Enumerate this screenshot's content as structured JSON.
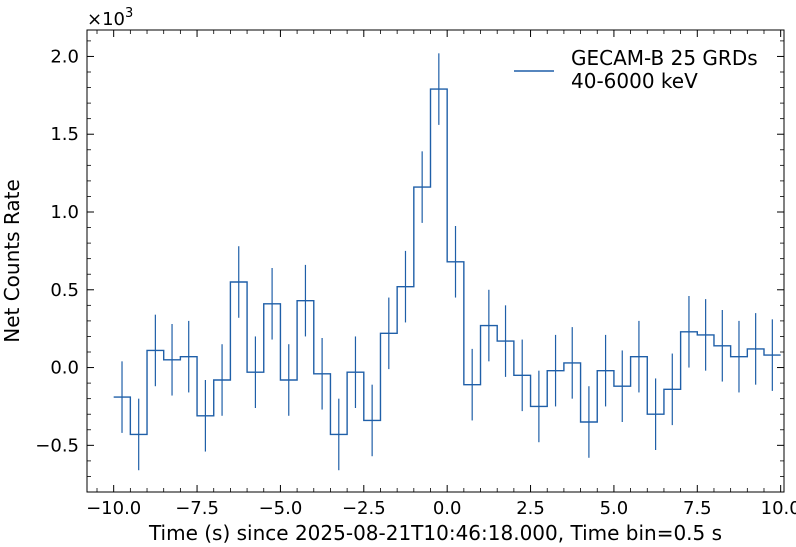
{
  "chart_data": {
    "type": "line",
    "style": "step-histogram-with-error-bars",
    "xlabel": "Time (s) since 2025-08-21T10:46:18.000, Time bin=0.5 s",
    "ylabel": "Net Counts Rate",
    "y_multiplier": "×10",
    "y_multiplier_exponent": "3",
    "xlim": [
      -10.8,
      10.1
    ],
    "ylim": [
      -0.8,
      2.17
    ],
    "x_ticks": [
      -10.0,
      -7.5,
      -5.0,
      -2.5,
      0.0,
      2.5,
      5.0,
      7.5,
      10.0
    ],
    "x_tick_labels": [
      "−10.0",
      "−7.5",
      "−5.0",
      "−2.5",
      "0.0",
      "2.5",
      "5.0",
      "7.5",
      "10.0"
    ],
    "y_ticks": [
      -0.5,
      0.0,
      0.5,
      1.0,
      1.5,
      2.0
    ],
    "y_tick_labels": [
      "−0.5",
      "0.0",
      "0.5",
      "1.0",
      "1.5",
      "2.0"
    ],
    "grid": false,
    "legend_position": "top-right",
    "color": "#1f5fa8",
    "series": [
      {
        "name": "GECAM-B 25 GRDs\n40-6000 keV",
        "bin_width": 0.5,
        "x": [
          -10.0,
          -9.5,
          -9.0,
          -8.5,
          -8.0,
          -7.5,
          -7.0,
          -6.5,
          -6.0,
          -5.5,
          -5.0,
          -4.5,
          -4.0,
          -3.5,
          -3.0,
          -2.5,
          -2.0,
          -1.5,
          -1.0,
          -0.5,
          0.0,
          0.5,
          1.0,
          1.5,
          2.0,
          2.5,
          3.0,
          3.5,
          4.0,
          4.5,
          5.0,
          5.5,
          6.0,
          6.5,
          7.0,
          7.5,
          8.0,
          8.5,
          9.0,
          9.5
        ],
        "values": [
          -0.19,
          -0.43,
          0.11,
          0.05,
          0.07,
          -0.31,
          -0.08,
          0.55,
          -0.03,
          0.41,
          -0.08,
          0.43,
          -0.04,
          -0.43,
          -0.03,
          -0.34,
          0.22,
          0.52,
          1.16,
          1.79,
          0.68,
          -0.11,
          0.27,
          0.17,
          -0.05,
          -0.25,
          -0.02,
          0.03,
          -0.35,
          -0.02,
          -0.12,
          0.07,
          -0.3,
          -0.14,
          0.23,
          0.21,
          0.14,
          0.07,
          0.12,
          0.08
        ],
        "errors": [
          0.23,
          0.23,
          0.23,
          0.23,
          0.23,
          0.23,
          0.23,
          0.23,
          0.23,
          0.23,
          0.23,
          0.23,
          0.23,
          0.23,
          0.23,
          0.23,
          0.23,
          0.23,
          0.23,
          0.23,
          0.23,
          0.23,
          0.23,
          0.23,
          0.23,
          0.23,
          0.23,
          0.23,
          0.23,
          0.23,
          0.23,
          0.23,
          0.23,
          0.23,
          0.23,
          0.23,
          0.23,
          0.23,
          0.23,
          0.23
        ]
      }
    ]
  }
}
